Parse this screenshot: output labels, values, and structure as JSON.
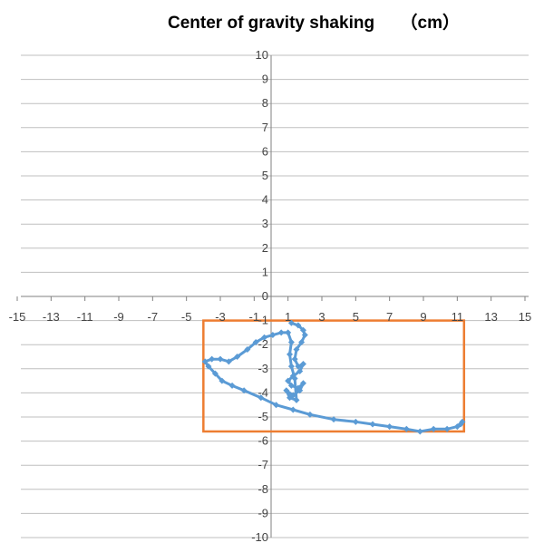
{
  "chart_data": {
    "type": "scatter",
    "title": "Center of gravity shaking　　（cm）",
    "xlabel": "",
    "ylabel": "",
    "xlim": [
      -15,
      15
    ],
    "ylim": [
      -10,
      10
    ],
    "xticks": [
      "-15",
      "-13",
      "-11",
      "-9",
      "-7",
      "-5",
      "-3",
      "-1",
      "1",
      "3",
      "5",
      "7",
      "9",
      "11",
      "13",
      "15"
    ],
    "yticks": [
      "10",
      "9",
      "8",
      "7",
      "6",
      "5",
      "4",
      "3",
      "2",
      "1",
      "0",
      "-1",
      "-2",
      "-3",
      "-4",
      "-5",
      "-6",
      "-7",
      "-8",
      "-9",
      "-10"
    ],
    "grid": "horizontal",
    "legend": "none",
    "colors": {
      "series": "#5B9BD5",
      "box": "#ED7D31",
      "grid": "#BFBFBF",
      "axis": "#808080"
    },
    "series": [
      {
        "values": [
          [
            1.2,
            -1.1
          ],
          [
            1.6,
            -1.2
          ],
          [
            1.9,
            -1.4
          ],
          [
            2.0,
            -1.6
          ],
          [
            1.8,
            -1.9
          ],
          [
            1.5,
            -2.2
          ],
          [
            1.4,
            -2.6
          ],
          [
            1.6,
            -2.9
          ],
          [
            1.9,
            -2.8
          ],
          [
            1.7,
            -3.1
          ],
          [
            1.3,
            -3.3
          ],
          [
            1.0,
            -3.5
          ],
          [
            1.2,
            -3.7
          ],
          [
            1.6,
            -3.8
          ],
          [
            1.9,
            -3.6
          ],
          [
            1.7,
            -3.9
          ],
          [
            1.3,
            -4.1
          ],
          [
            0.9,
            -3.9
          ],
          [
            1.1,
            -4.2
          ],
          [
            1.5,
            -4.3
          ],
          [
            1.4,
            -3.4
          ],
          [
            1.2,
            -2.9
          ],
          [
            1.1,
            -2.4
          ],
          [
            1.2,
            -1.9
          ],
          [
            1.0,
            -1.5
          ],
          [
            0.6,
            -1.5
          ],
          [
            0.1,
            -1.6
          ],
          [
            -0.4,
            -1.7
          ],
          [
            -0.9,
            -1.9
          ],
          [
            -1.4,
            -2.2
          ],
          [
            -2.0,
            -2.5
          ],
          [
            -2.5,
            -2.7
          ],
          [
            -3.0,
            -2.6
          ],
          [
            -3.5,
            -2.6
          ],
          [
            -3.9,
            -2.7
          ],
          [
            -3.7,
            -2.9
          ],
          [
            -3.3,
            -3.2
          ],
          [
            -2.9,
            -3.5
          ],
          [
            -2.3,
            -3.7
          ],
          [
            -1.6,
            -3.9
          ],
          [
            -0.6,
            -4.2
          ],
          [
            0.3,
            -4.5
          ],
          [
            1.3,
            -4.7
          ],
          [
            2.3,
            -4.9
          ],
          [
            3.7,
            -5.1
          ],
          [
            5.0,
            -5.2
          ],
          [
            6.0,
            -5.3
          ],
          [
            7.0,
            -5.4
          ],
          [
            8.0,
            -5.5
          ],
          [
            8.8,
            -5.6
          ],
          [
            9.6,
            -5.5
          ],
          [
            10.4,
            -5.5
          ],
          [
            11.0,
            -5.4
          ],
          [
            11.3,
            -5.2
          ],
          [
            11.2,
            -5.3
          ]
        ]
      }
    ],
    "annotations": [
      {
        "type": "rectangle",
        "x_range": [
          -4.0,
          11.4
        ],
        "y_range": [
          -5.6,
          -1.0
        ],
        "color": "#ED7D31"
      }
    ]
  }
}
